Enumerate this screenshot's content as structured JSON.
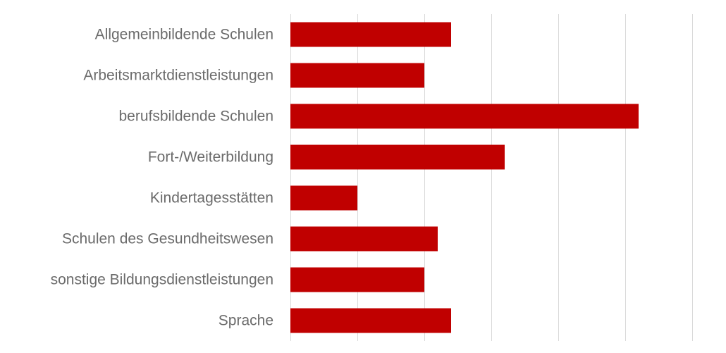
{
  "chart_data": {
    "type": "bar",
    "orientation": "horizontal",
    "categories": [
      "Allgemeinbildende Schulen",
      "Arbeitsmarktdienstleistungen",
      "berufsbildende Schulen",
      "Fort-/Weiterbildung",
      "Kindertagesstätten",
      "Schulen des Gesundheitswesen",
      "sonstige Bildungsdienstleistungen",
      "Sprache"
    ],
    "values": [
      12,
      10,
      26,
      16,
      5,
      11,
      10,
      12
    ],
    "xlim": [
      0,
      30
    ],
    "grid": true,
    "bar_color": "#c00000",
    "title": "",
    "xlabel": "",
    "ylabel": ""
  }
}
